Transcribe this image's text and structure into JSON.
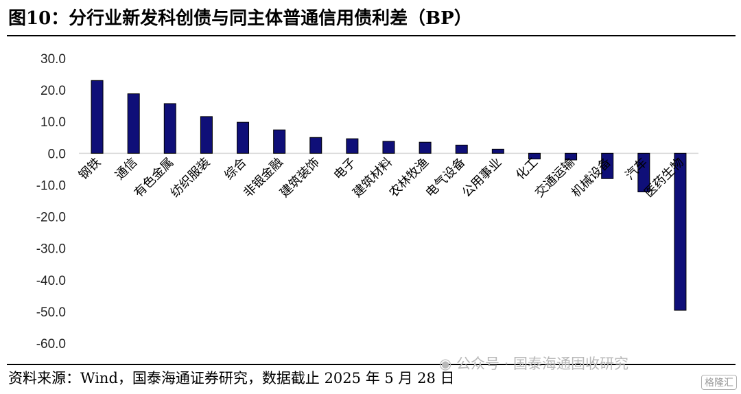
{
  "title": "图10：分行业新发科创债与同主体普通信用债利差（BP）",
  "source": "资料来源：Wind，国泰海通证券研究，数据截止 2025 年 5 月 28 日",
  "watermark": {
    "text": "公众号 · 国泰海通固收研究",
    "logo": "格隆汇",
    "icon": "wechat-icon"
  },
  "colors": {
    "bar": "#0f0f78",
    "zero_line": "#d9d9d9"
  },
  "chart_data": {
    "type": "bar",
    "categories": [
      "钢铁",
      "通信",
      "有色金属",
      "纺织服装",
      "综合",
      "非银金融",
      "建筑装饰",
      "电子",
      "建筑材料",
      "农林牧渔",
      "电气设备",
      "公用事业",
      "化工",
      "交通运输",
      "机械设备",
      "汽车",
      "医药生物"
    ],
    "values": [
      23.0,
      18.8,
      15.7,
      11.6,
      9.8,
      7.4,
      5.0,
      4.6,
      3.8,
      3.5,
      2.6,
      1.3,
      -1.8,
      -2.1,
      -8.0,
      -12.2,
      -49.6
    ],
    "yticks": [
      "30.0",
      "20.0",
      "10.0",
      "0.0",
      "-10.0",
      "-20.0",
      "-30.0",
      "-40.0",
      "-50.0",
      "-60.0"
    ],
    "ylim": [
      -60,
      30
    ],
    "xlabel": "",
    "ylabel": "",
    "grid": false,
    "legend": "none"
  }
}
